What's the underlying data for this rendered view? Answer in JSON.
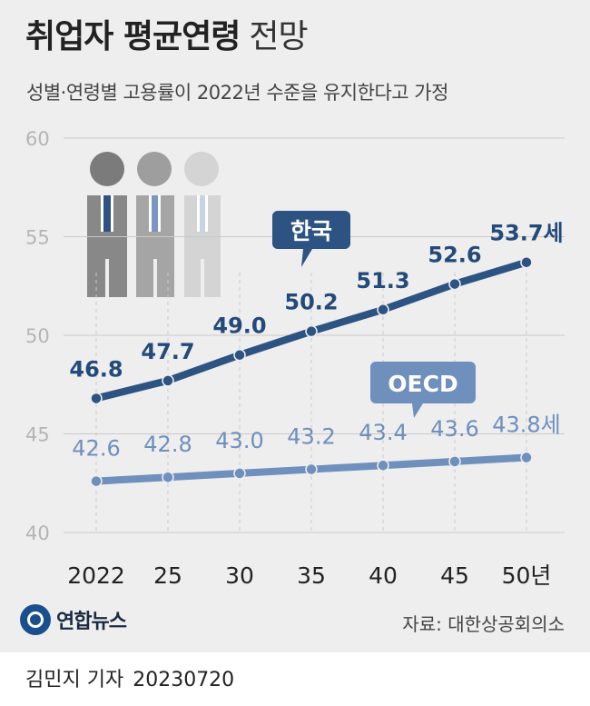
{
  "header": {
    "title_bold": "취업자 평균연령",
    "title_light": "전망",
    "subtitle": "성별·연령별 고용률이 2022년 수준을 유지한다고 가정"
  },
  "chart_data": {
    "type": "line",
    "categories": [
      "2022",
      "25",
      "30",
      "35",
      "40",
      "45",
      "50년"
    ],
    "ylim": [
      40,
      60
    ],
    "yticks": [
      40,
      45,
      50,
      55,
      60
    ],
    "grid": true,
    "series": [
      {
        "name": "한국",
        "values": [
          46.8,
          47.7,
          49.0,
          50.2,
          51.3,
          52.6,
          53.7
        ],
        "value_labels": [
          "46.8",
          "47.7",
          "49.0",
          "50.2",
          "51.3",
          "52.6",
          "53.7세"
        ],
        "color": "#2c5382",
        "label_color": "#234a7a"
      },
      {
        "name": "OECD",
        "values": [
          42.6,
          42.8,
          43.0,
          43.2,
          43.4,
          43.6,
          43.8
        ],
        "value_labels": [
          "42.6",
          "42.8",
          "43.0",
          "43.2",
          "43.4",
          "43.6",
          "43.8세"
        ],
        "color": "#6f8fbd",
        "label_color": "#6f8fbd"
      }
    ],
    "colors": {
      "grid": "#c9c9c9",
      "tick_text": "#b5b5b5",
      "category_text": "#222222"
    }
  },
  "footer": {
    "logo_text": "연합뉴스",
    "source": "자료: 대한상공회의소",
    "reporter": "김민지 기자",
    "date": "20230720"
  }
}
